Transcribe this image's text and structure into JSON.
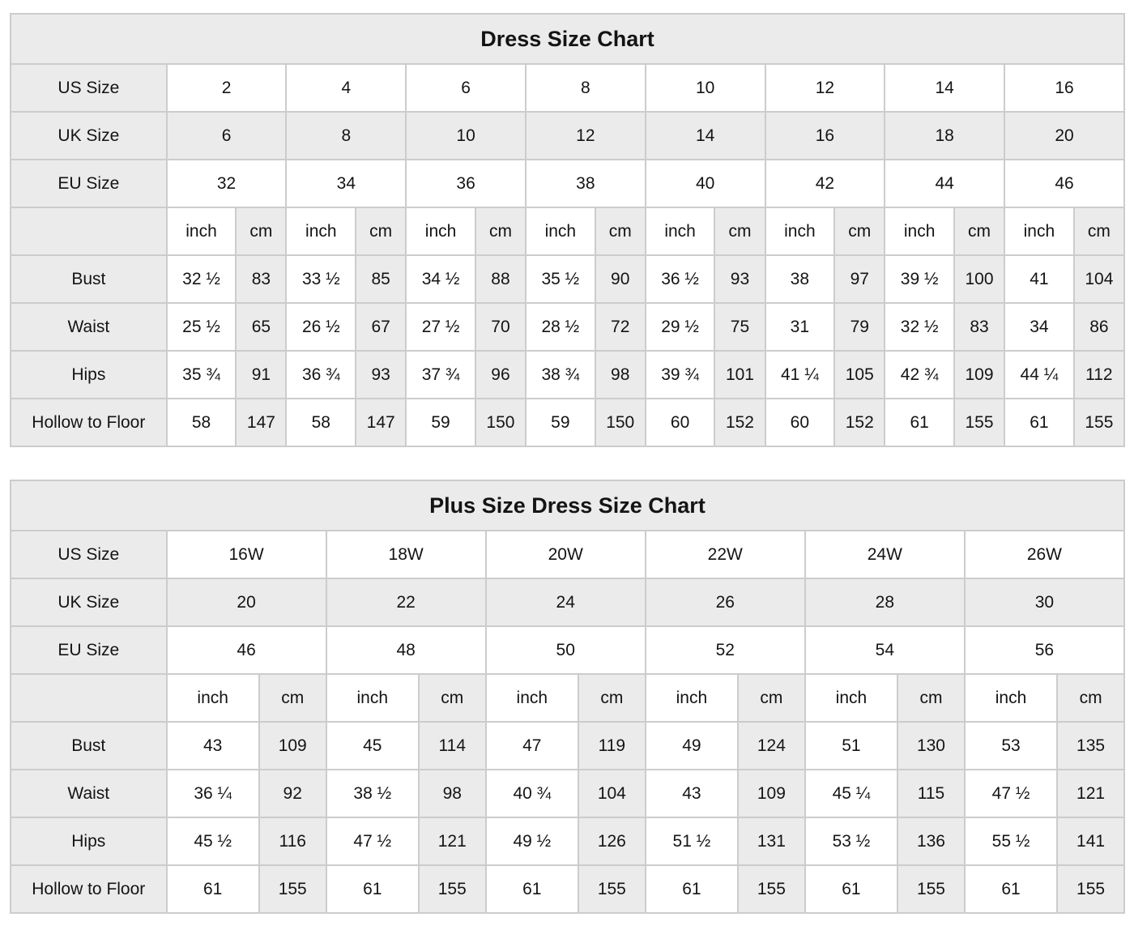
{
  "colors": {
    "cell_gray": "#ebebeb",
    "cell_white": "#ffffff",
    "border": "#cccccc",
    "text": "#141414"
  },
  "charts": [
    {
      "title": "Dress Size Chart",
      "units": [
        "inch",
        "cm"
      ],
      "size_rows": [
        {
          "label": "US Size",
          "shade": false,
          "values": [
            "2",
            "4",
            "6",
            "8",
            "10",
            "12",
            "14",
            "16"
          ]
        },
        {
          "label": "UK Size",
          "shade": true,
          "values": [
            "6",
            "8",
            "10",
            "12",
            "14",
            "16",
            "18",
            "20"
          ]
        },
        {
          "label": "EU Size",
          "shade": false,
          "values": [
            "32",
            "34",
            "36",
            "38",
            "40",
            "42",
            "44",
            "46"
          ]
        }
      ],
      "measure_rows": [
        {
          "label": "Bust",
          "pairs": [
            [
              "32 ½",
              "83"
            ],
            [
              "33 ½",
              "85"
            ],
            [
              "34 ½",
              "88"
            ],
            [
              "35 ½",
              "90"
            ],
            [
              "36 ½",
              "93"
            ],
            [
              "38",
              "97"
            ],
            [
              "39 ½",
              "100"
            ],
            [
              "41",
              "104"
            ]
          ]
        },
        {
          "label": "Waist",
          "pairs": [
            [
              "25 ½",
              "65"
            ],
            [
              "26 ½",
              "67"
            ],
            [
              "27 ½",
              "70"
            ],
            [
              "28 ½",
              "72"
            ],
            [
              "29 ½",
              "75"
            ],
            [
              "31",
              "79"
            ],
            [
              "32 ½",
              "83"
            ],
            [
              "34",
              "86"
            ]
          ]
        },
        {
          "label": "Hips",
          "pairs": [
            [
              "35 ¾",
              "91"
            ],
            [
              "36 ¾",
              "93"
            ],
            [
              "37 ¾",
              "96"
            ],
            [
              "38 ¾",
              "98"
            ],
            [
              "39 ¾",
              "101"
            ],
            [
              "41 ¼",
              "105"
            ],
            [
              "42 ¾",
              "109"
            ],
            [
              "44 ¼",
              "112"
            ]
          ]
        },
        {
          "label": "Hollow to Floor",
          "pairs": [
            [
              "58",
              "147"
            ],
            [
              "58",
              "147"
            ],
            [
              "59",
              "150"
            ],
            [
              "59",
              "150"
            ],
            [
              "60",
              "152"
            ],
            [
              "60",
              "152"
            ],
            [
              "61",
              "155"
            ],
            [
              "61",
              "155"
            ]
          ]
        }
      ]
    },
    {
      "title": "Plus Size Dress Size Chart",
      "units": [
        "inch",
        "cm"
      ],
      "size_rows": [
        {
          "label": "US Size",
          "shade": false,
          "values": [
            "16W",
            "18W",
            "20W",
            "22W",
            "24W",
            "26W"
          ]
        },
        {
          "label": "UK Size",
          "shade": true,
          "values": [
            "20",
            "22",
            "24",
            "26",
            "28",
            "30"
          ]
        },
        {
          "label": "EU Size",
          "shade": false,
          "values": [
            "46",
            "48",
            "50",
            "52",
            "54",
            "56"
          ]
        }
      ],
      "measure_rows": [
        {
          "label": "Bust",
          "pairs": [
            [
              "43",
              "109"
            ],
            [
              "45",
              "114"
            ],
            [
              "47",
              "119"
            ],
            [
              "49",
              "124"
            ],
            [
              "51",
              "130"
            ],
            [
              "53",
              "135"
            ]
          ]
        },
        {
          "label": "Waist",
          "pairs": [
            [
              "36 ¼",
              "92"
            ],
            [
              "38 ½",
              "98"
            ],
            [
              "40 ¾",
              "104"
            ],
            [
              "43",
              "109"
            ],
            [
              "45 ¼",
              "115"
            ],
            [
              "47 ½",
              "121"
            ]
          ]
        },
        {
          "label": "Hips",
          "pairs": [
            [
              "45 ½",
              "116"
            ],
            [
              "47 ½",
              "121"
            ],
            [
              "49 ½",
              "126"
            ],
            [
              "51 ½",
              "131"
            ],
            [
              "53 ½",
              "136"
            ],
            [
              "55 ½",
              "141"
            ]
          ]
        },
        {
          "label": "Hollow to Floor",
          "pairs": [
            [
              "61",
              "155"
            ],
            [
              "61",
              "155"
            ],
            [
              "61",
              "155"
            ],
            [
              "61",
              "155"
            ],
            [
              "61",
              "155"
            ],
            [
              "61",
              "155"
            ]
          ]
        }
      ]
    }
  ]
}
